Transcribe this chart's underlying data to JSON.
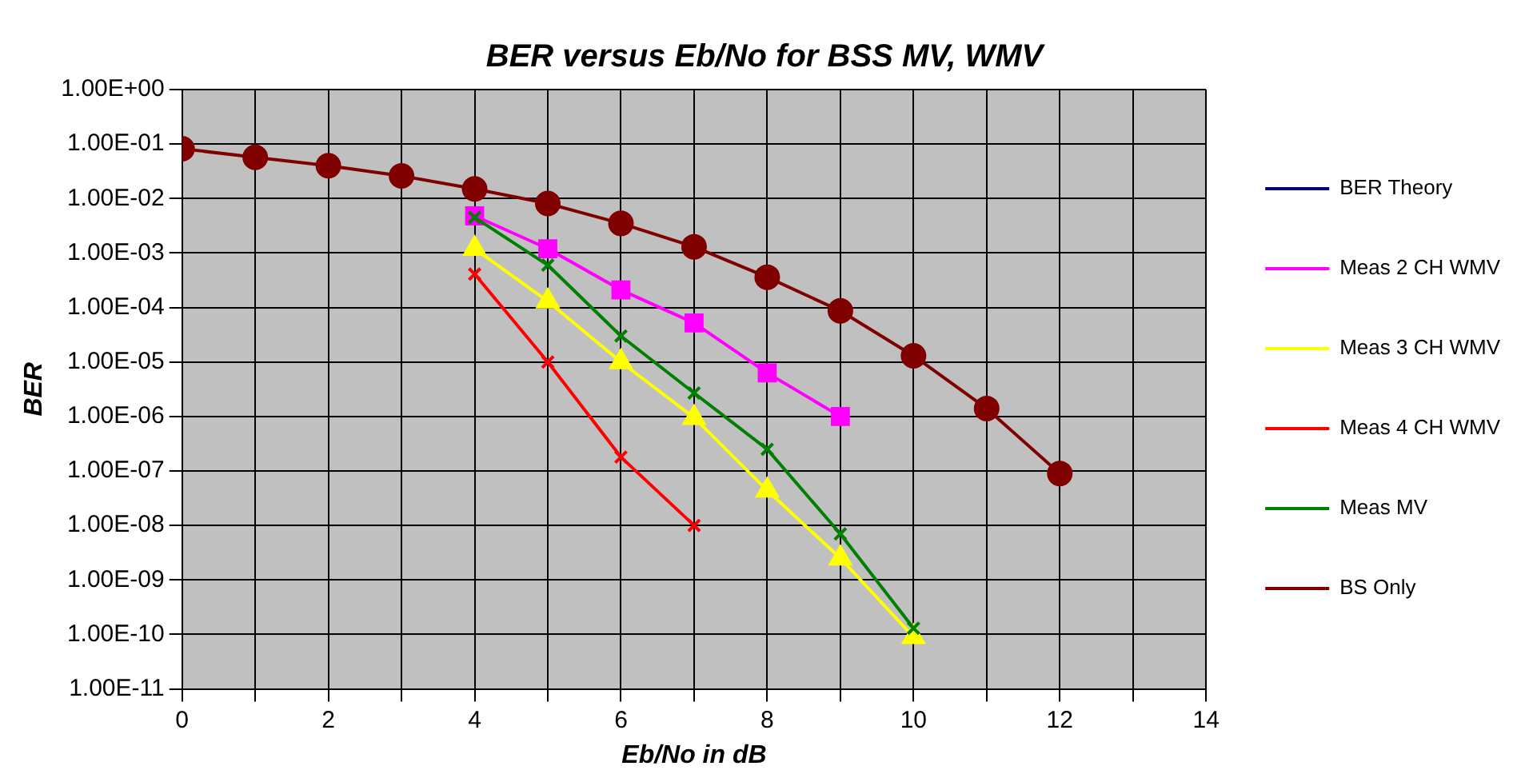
{
  "chart_data": {
    "type": "line",
    "title": "BER versus Eb/No for BSS MV, WMV",
    "xlabel": "Eb/No in dB",
    "ylabel": "BER",
    "x": [
      0,
      1,
      2,
      3,
      4,
      5,
      6,
      7,
      8,
      9,
      10,
      11,
      12
    ],
    "series": [
      {
        "name": "BER Theory",
        "color": "#000080",
        "marker": "diamond",
        "values": [
          null,
          null,
          null,
          null,
          null,
          null,
          null,
          null,
          null,
          null,
          null,
          null,
          null
        ]
      },
      {
        "name": "Meas 2 CH WMV",
        "color": "#ff00ff",
        "marker": "square",
        "values": [
          null,
          null,
          null,
          null,
          0.0048,
          0.0012,
          0.00021,
          5.2e-05,
          6.3e-06,
          1e-06,
          null,
          null,
          null
        ]
      },
      {
        "name": "Meas 3 CH WMV",
        "color": "#ffff00",
        "marker": "triangle",
        "values": [
          null,
          null,
          null,
          null,
          0.0012,
          0.00013,
          1e-05,
          9.5e-07,
          4.4e-08,
          2.5e-09,
          9e-11,
          null,
          null
        ]
      },
      {
        "name": "Meas 4 CH WMV",
        "color": "#ff0000",
        "marker": "cross",
        "values": [
          null,
          null,
          null,
          null,
          0.00041,
          1e-05,
          1.8e-07,
          1e-08,
          null,
          null,
          null,
          null,
          null
        ]
      },
      {
        "name": "Meas MV",
        "color": "#008000",
        "marker": "cross",
        "values": [
          null,
          null,
          null,
          null,
          0.0045,
          0.0006,
          3e-05,
          2.7e-06,
          2.5e-07,
          7e-09,
          1.3e-10,
          null,
          null
        ]
      },
      {
        "name": "BS Only",
        "color": "#800000",
        "marker": "circle",
        "values": [
          0.082,
          0.057,
          0.04,
          0.026,
          0.015,
          0.0081,
          0.0035,
          0.0013,
          0.00036,
          8.7e-05,
          1.3e-05,
          1.4e-06,
          9e-08
        ]
      }
    ],
    "log": "y",
    "ylim": [
      1e-11,
      1
    ],
    "yticks": [
      {
        "value": 1,
        "label": "1.00E+00"
      },
      {
        "value": 0.1,
        "label": "1.00E-01"
      },
      {
        "value": 0.01,
        "label": "1.00E-02"
      },
      {
        "value": 0.001,
        "label": "1.00E-03"
      },
      {
        "value": 0.0001,
        "label": "1.00E-04"
      },
      {
        "value": 1e-05,
        "label": "1.00E-05"
      },
      {
        "value": 1e-06,
        "label": "1.00E-06"
      },
      {
        "value": 1e-07,
        "label": "1.00E-07"
      },
      {
        "value": 1e-08,
        "label": "1.00E-08"
      },
      {
        "value": 1e-09,
        "label": "1.00E-09"
      },
      {
        "value": 1e-10,
        "label": "1.00E-10"
      },
      {
        "value": 1e-11,
        "label": "1.00E-11"
      }
    ],
    "xlim": [
      0,
      14
    ],
    "xticks": [
      0,
      {
        "value": 1,
        "label": null
      },
      2,
      {
        "value": 3,
        "label": null
      },
      4,
      {
        "value": 5,
        "label": null
      },
      6,
      {
        "value": 7,
        "label": null
      },
      8,
      {
        "value": 9,
        "label": null
      },
      10,
      {
        "value": 11,
        "label": null
      },
      12,
      {
        "value": 13,
        "label": null
      },
      14
    ],
    "grid": true,
    "legend": "right",
    "line_style": "solid"
  }
}
